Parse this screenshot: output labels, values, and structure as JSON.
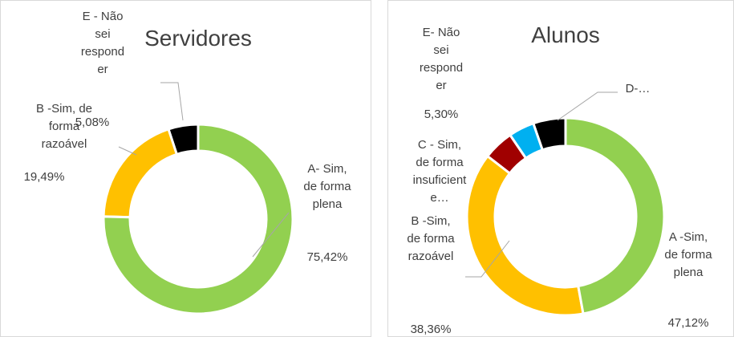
{
  "chart_data": [
    {
      "type": "donut",
      "title": "Servidores",
      "categories": [
        "A- Sim, de forma plena",
        "B -Sim, de forma razoável",
        "E - Não sei responder"
      ],
      "values": [
        75.42,
        19.49,
        5.08
      ],
      "value_labels": [
        "75,42%",
        "19,49%",
        "5,08%"
      ],
      "colors": [
        "#92d050",
        "#ffc000",
        "#000000"
      ]
    },
    {
      "type": "donut",
      "title": "Alunos",
      "categories": [
        "A -Sim, de forma plena",
        "B -Sim, de forma razoável",
        "C - Sim, de forma insuficiente…",
        "D-…",
        "E- Não sei responder"
      ],
      "values": [
        47.12,
        38.36,
        5.0,
        4.2,
        5.3
      ],
      "value_labels": [
        "47,12%",
        "38,36%",
        null,
        null,
        "5,30%"
      ],
      "colors": [
        "#92d050",
        "#ffc000",
        "#a00000",
        "#00b0f0",
        "#000000"
      ]
    }
  ]
}
